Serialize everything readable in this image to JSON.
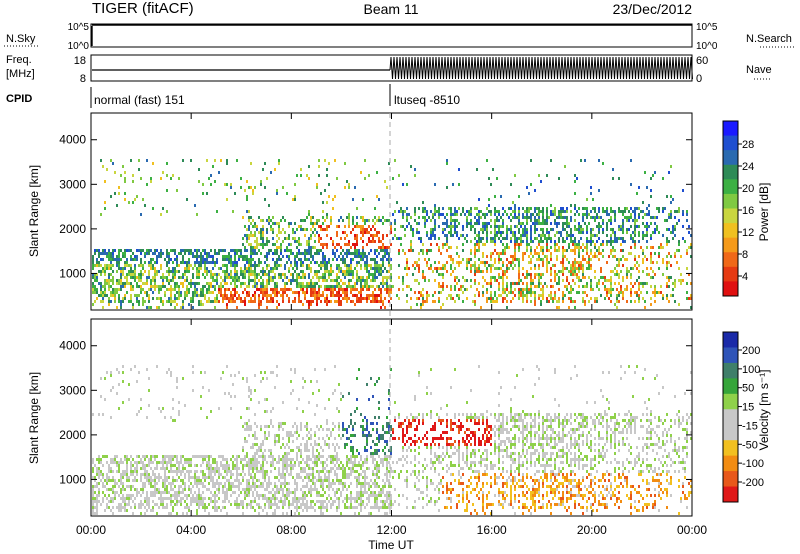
{
  "header": {
    "left": "TIGER (fitACF)",
    "center": "Beam 11",
    "right": "23/Dec/2012"
  },
  "nsky_panel": {
    "label": "N.Sky",
    "ticks_left": [
      "10^5",
      "10^0"
    ],
    "ticks_right": [
      "10^5",
      "10^0"
    ],
    "right_label": "N.Search"
  },
  "freq_panel": {
    "label_line1": "Freq.",
    "label_line2": "[MHz]",
    "ticks_left": [
      "18",
      "8"
    ],
    "ticks_right": [
      "60",
      "0"
    ],
    "right_label": "Nave"
  },
  "cpid_panel": {
    "label": "CPID",
    "segments": [
      {
        "text": "normal (fast) 151",
        "start": "00:00"
      },
      {
        "text": "ltuseq -8510",
        "start": "12:00"
      }
    ]
  },
  "chart_data": [
    {
      "type": "heatmap",
      "name": "power",
      "ylabel": "Slant Range [km]",
      "ylim": [
        180,
        4600
      ],
      "yticks": [
        "1000",
        "2000",
        "3000",
        "4000"
      ],
      "colorbar_label": "Power [dB]",
      "colorbar_ticks": [
        "4",
        "8",
        "12",
        "16",
        "20",
        "24",
        "28"
      ],
      "colors": [
        "#1a1aff",
        "#1f4fd0",
        "#2a6ab0",
        "#2e8b57",
        "#3cb043",
        "#7fc942",
        "#c9d63f",
        "#f0c020",
        "#f59a1a",
        "#f06818",
        "#e63a12",
        "#e01010"
      ]
    },
    {
      "type": "heatmap",
      "name": "velocity",
      "ylabel": "Slant Range [km]",
      "ylim": [
        180,
        4600
      ],
      "yticks": [
        "1000",
        "2000",
        "3000",
        "4000"
      ],
      "colorbar_label": "Velocity [m s⁻¹]",
      "colorbar_ticks": [
        "200",
        "100",
        "50",
        "15",
        "-15",
        "-50",
        "-100",
        "-200"
      ],
      "colors": [
        "#1a2aa8",
        "#2f54b8",
        "#3f7f6a",
        "#36a53a",
        "#8fd14a",
        "#c8c8c8",
        "#c8c8c8",
        "#f2c020",
        "#f28c12",
        "#e8581a",
        "#e01818"
      ]
    }
  ],
  "xaxis": {
    "ticks": [
      "00:00",
      "04:00",
      "08:00",
      "12:00",
      "16:00",
      "20:00",
      "00:00"
    ],
    "label": "Time UT"
  }
}
